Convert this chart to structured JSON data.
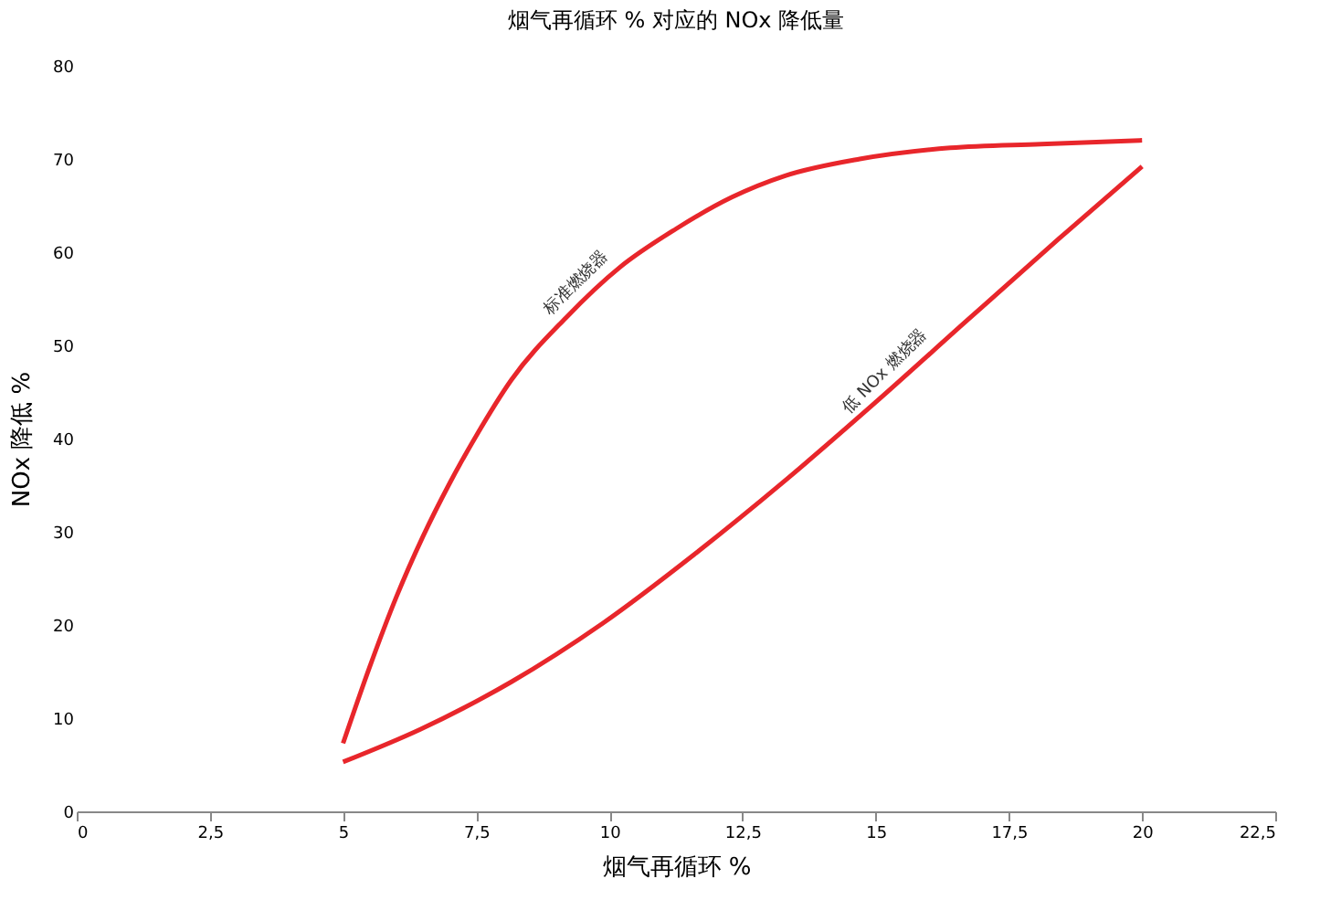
{
  "chart_data": {
    "type": "line",
    "title": "烟气再循环 % 对应的 NOx 降低量",
    "xlabel": "烟气再循环 %",
    "ylabel": "NOx 降低 %",
    "series": [
      {
        "color": "#e8262b",
        "x": [
          5,
          5.5,
          6,
          6.5,
          7,
          7.5,
          8.16,
          9.19,
          10.2,
          11.25,
          12.3,
          13.3,
          14.7,
          16.4,
          18.1,
          20
        ],
        "values": [
          7.3,
          15.5,
          23,
          29.5,
          35.2,
          40.3,
          46.3,
          53,
          58.4,
          62.5,
          65.9,
          68.2,
          70,
          71.2,
          71.6,
          72
        ]
      },
      {
        "color": "#e8262b",
        "x": [
          5,
          6.45,
          8.16,
          9.88,
          11.6,
          13.3,
          15,
          16.7,
          18.45,
          20
        ],
        "values": [
          5.3,
          8.8,
          13.9,
          20.2,
          27.6,
          35.5,
          43.9,
          52.6,
          61.5,
          69.2
        ]
      }
    ],
    "annotations": [
      {
        "text": "标准燃烧器",
        "x": 9.6,
        "y": 55.4
      },
      {
        "text": "低 NOx 燃烧器",
        "x": 15.4,
        "y": 45.9
      }
    ],
    "xlim": [
      0,
      22.5
    ],
    "xticks": [
      0,
      {
        "value": 2.5,
        "label": "2,5"
      },
      5,
      {
        "value": 7.5,
        "label": "7,5"
      },
      10,
      {
        "value": 12.5,
        "label": "12,5"
      },
      15,
      {
        "value": 17.5,
        "label": "17,5"
      },
      20,
      {
        "value": 22.5,
        "label": "22,5"
      }
    ],
    "ylim": [
      0,
      80
    ],
    "yticks": [
      0,
      10,
      20,
      30,
      40,
      50,
      60,
      70,
      80
    ],
    "grid": false,
    "marker": "none",
    "line_style": "solid",
    "legend": false
  }
}
